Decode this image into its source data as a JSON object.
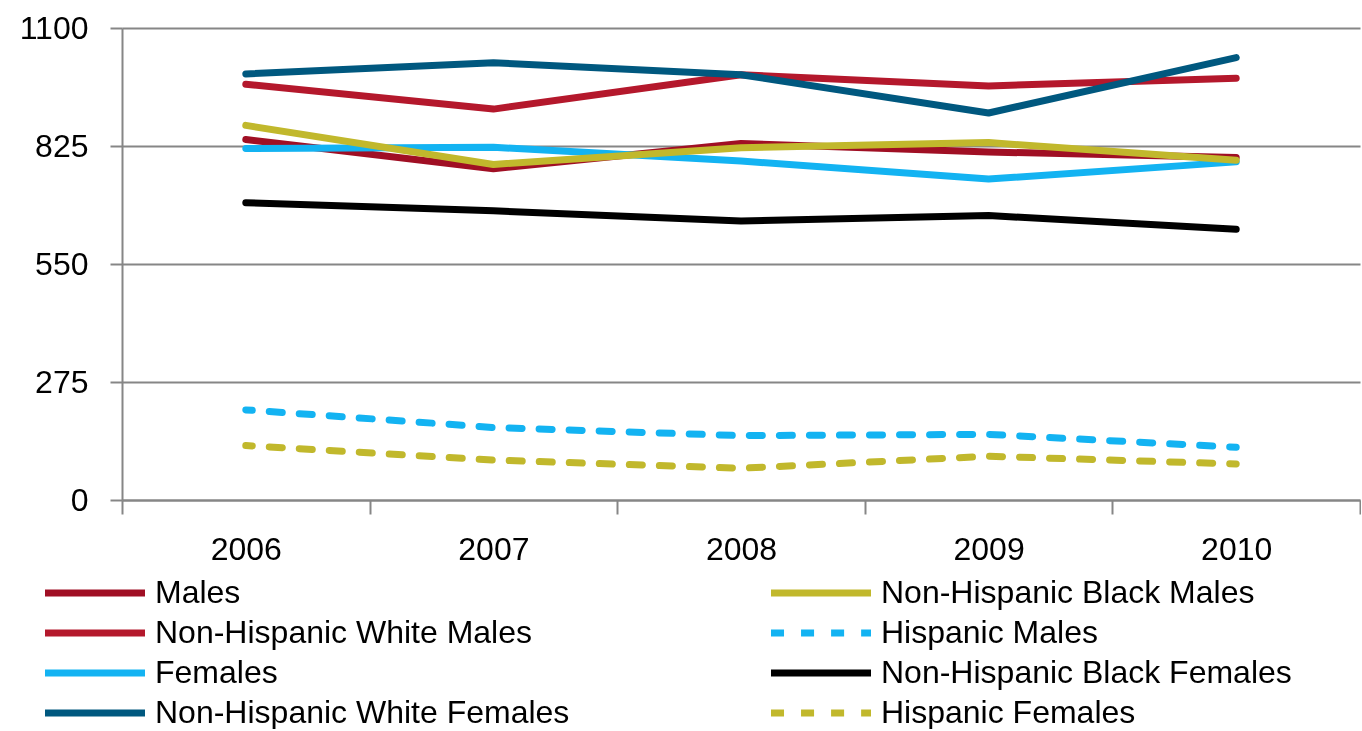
{
  "chart_data": {
    "type": "line",
    "categories": [
      "2006",
      "2007",
      "2008",
      "2009",
      "2010"
    ],
    "ylim": [
      0,
      1100
    ],
    "yticks": [
      0,
      275,
      550,
      825,
      1100
    ],
    "grid": "y",
    "legend": "bottom",
    "series": [
      {
        "name": "Males",
        "color": "#a00f24",
        "line_style": "solid",
        "values": [
          840,
          772,
          831,
          811,
          798
        ]
      },
      {
        "name": "Non-Hispanic White Males",
        "color": "#b4182c",
        "line_style": "solid",
        "values": [
          969,
          911,
          991,
          965,
          983
        ]
      },
      {
        "name": "Females",
        "color": "#13b3f2",
        "line_style": "solid",
        "values": [
          819,
          822,
          790,
          748,
          788
        ]
      },
      {
        "name": "Non-Hispanic White Females",
        "color": "#00587f",
        "line_style": "solid",
        "values": [
          993,
          1019,
          991,
          902,
          1031
        ]
      },
      {
        "name": "Non-Hispanic Black Males",
        "color": "#c1b82c",
        "line_style": "solid",
        "values": [
          873,
          782,
          821,
          833,
          792
        ]
      },
      {
        "name": "Hispanic Males",
        "color": "#13b3f2",
        "line_style": "dashed",
        "values": [
          210,
          169,
          150,
          153,
          123
        ]
      },
      {
        "name": "Non-Hispanic Black Females",
        "color": "#000000",
        "line_style": "solid",
        "values": [
          693,
          674,
          650,
          663,
          631
        ]
      },
      {
        "name": "Hispanic Females",
        "color": "#c1b82c",
        "line_style": "dashed",
        "values": [
          127,
          93,
          74,
          102,
          84
        ]
      }
    ]
  }
}
